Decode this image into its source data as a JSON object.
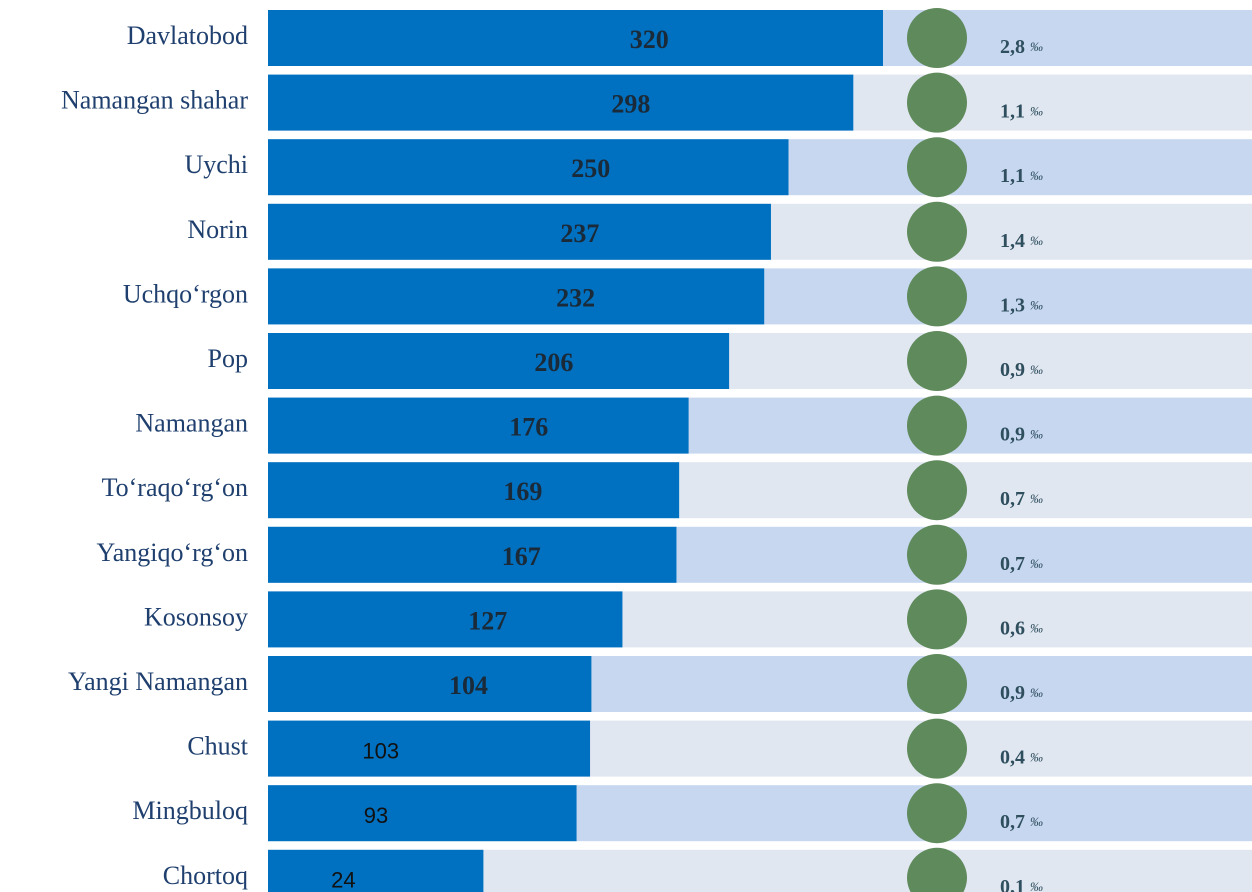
{
  "chart_data": {
    "type": "bar",
    "categories": [
      "Davlatobod",
      "Namangan shahar",
      "Uychi",
      "Norin",
      "Uchqo‘rgon",
      "Pop",
      "Namangan",
      "To‘raqo‘rg‘on",
      "Yangiqo‘rg‘on",
      "Kosonsoy",
      "Yangi Namangan",
      "Chust",
      "Mingbuloq",
      "Chortoq"
    ],
    "values": [
      320,
      298,
      250,
      237,
      232,
      206,
      176,
      169,
      167,
      127,
      104,
      103,
      93,
      24
    ],
    "color": "#0070c0",
    "rates": [
      2.8,
      1.1,
      1.1,
      1.4,
      1.3,
      0.9,
      0.9,
      0.7,
      0.7,
      0.6,
      0.9,
      0.4,
      0.7,
      0.1
    ],
    "rate_labels": [
      "2,8",
      "1,1",
      "1,1",
      "1,4",
      "1,3",
      "0,9",
      "0,9",
      "0,7",
      "0,7",
      "0,6",
      "0,9",
      "0,4",
      "0,7",
      "0,1"
    ],
    "rate_unit": "‰"
  }
}
